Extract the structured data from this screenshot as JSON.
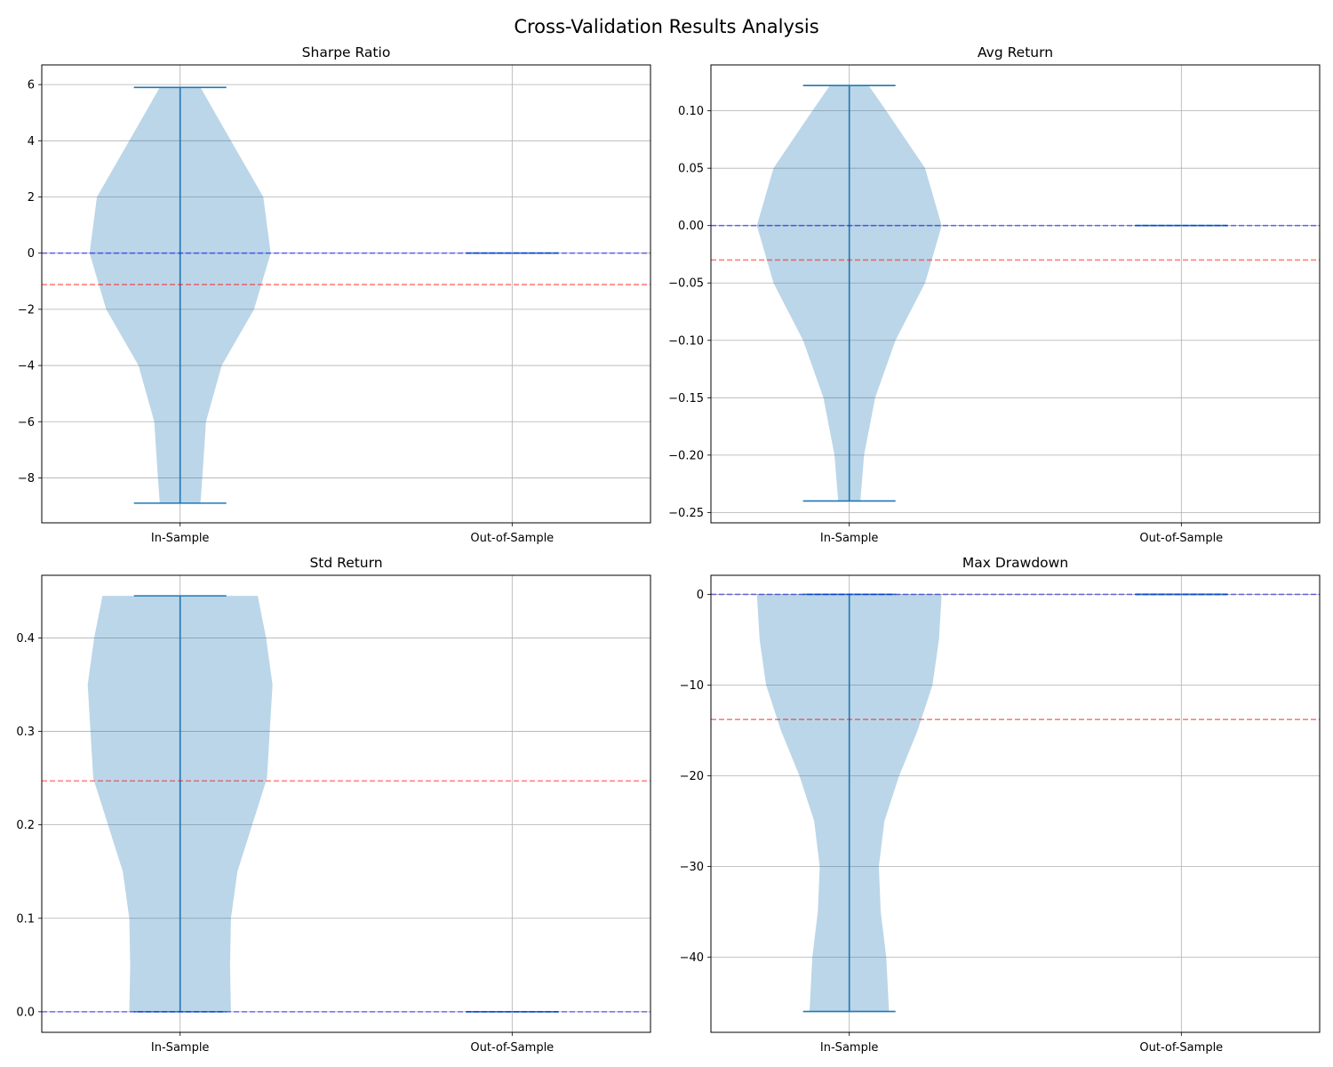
{
  "figure": {
    "title": "Cross-Validation Results Analysis"
  },
  "colors": {
    "violin_fill": "#1f77b4",
    "violin_opacity": 0.3,
    "line": "#1f77b4",
    "ref_blue": "#0000ff",
    "ref_red": "#ff0000",
    "grid": "#b0b0b0"
  },
  "chart_data": [
    {
      "type": "violin",
      "title": "Sharpe Ratio",
      "categories": [
        "In-Sample",
        "Out-of-Sample"
      ],
      "ylim": [
        -9.6,
        6.7
      ],
      "yticks": [
        -8,
        -6,
        -4,
        -2,
        0,
        2,
        4,
        6
      ],
      "ytick_labels": [
        "−8",
        "−6",
        "−4",
        "−2",
        "0",
        "2",
        "4",
        "6"
      ],
      "grid": true,
      "violins": [
        {
          "category": "In-Sample",
          "min": -8.9,
          "max": 5.9,
          "profile": [
            [
              -8.9,
              0.22
            ],
            [
              -8.0,
              0.24
            ],
            [
              -6.0,
              0.28
            ],
            [
              -4.0,
              0.45
            ],
            [
              -2.0,
              0.8
            ],
            [
              0.0,
              0.98
            ],
            [
              2.0,
              0.9
            ],
            [
              4.0,
              0.55
            ],
            [
              5.9,
              0.22
            ]
          ]
        },
        {
          "category": "Out-of-Sample",
          "min": 0.0,
          "max": 0.0,
          "profile": []
        }
      ],
      "ref_lines": [
        {
          "value": 0.0,
          "color": "blue"
        },
        {
          "value": -1.12,
          "color": "red"
        }
      ]
    },
    {
      "type": "violin",
      "title": "Avg Return",
      "categories": [
        "In-Sample",
        "Out-of-Sample"
      ],
      "ylim": [
        -0.259,
        0.14
      ],
      "yticks": [
        -0.25,
        -0.2,
        -0.15,
        -0.1,
        -0.05,
        0.0,
        0.05,
        0.1
      ],
      "ytick_labels": [
        "−0.25",
        "−0.20",
        "−0.15",
        "−0.10",
        "−0.05",
        "0.00",
        "0.05",
        "0.10"
      ],
      "grid": true,
      "violins": [
        {
          "category": "In-Sample",
          "min": -0.24,
          "max": 0.122,
          "profile": [
            [
              -0.24,
              0.12
            ],
            [
              -0.2,
              0.16
            ],
            [
              -0.15,
              0.28
            ],
            [
              -0.1,
              0.5
            ],
            [
              -0.05,
              0.82
            ],
            [
              0.0,
              1.0
            ],
            [
              0.05,
              0.82
            ],
            [
              0.1,
              0.4
            ],
            [
              0.122,
              0.21
            ]
          ]
        },
        {
          "category": "Out-of-Sample",
          "min": 0.0,
          "max": 0.0,
          "profile": []
        }
      ],
      "ref_lines": [
        {
          "value": 0.0,
          "color": "blue"
        },
        {
          "value": -0.03,
          "color": "red"
        }
      ]
    },
    {
      "type": "violin",
      "title": "Std Return",
      "categories": [
        "In-Sample",
        "Out-of-Sample"
      ],
      "ylim": [
        -0.022,
        0.467
      ],
      "yticks": [
        0.0,
        0.1,
        0.2,
        0.3,
        0.4
      ],
      "ytick_labels": [
        "0.0",
        "0.1",
        "0.2",
        "0.3",
        "0.4"
      ],
      "grid": true,
      "violins": [
        {
          "category": "In-Sample",
          "min": 0.0,
          "max": 0.445,
          "profile": [
            [
              0.0,
              0.55
            ],
            [
              0.05,
              0.54
            ],
            [
              0.1,
              0.55
            ],
            [
              0.15,
              0.62
            ],
            [
              0.2,
              0.78
            ],
            [
              0.25,
              0.94
            ],
            [
              0.3,
              0.97
            ],
            [
              0.35,
              1.0
            ],
            [
              0.4,
              0.93
            ],
            [
              0.445,
              0.84
            ]
          ]
        },
        {
          "category": "Out-of-Sample",
          "min": 0.0,
          "max": 0.0,
          "profile": []
        }
      ],
      "ref_lines": [
        {
          "value": 0.0,
          "color": "blue"
        },
        {
          "value": 0.247,
          "color": "red"
        }
      ]
    },
    {
      "type": "violin",
      "title": "Max Drawdown",
      "categories": [
        "In-Sample",
        "Out-of-Sample"
      ],
      "ylim": [
        -48.3,
        2.1
      ],
      "yticks": [
        -40,
        -30,
        -20,
        -10,
        0
      ],
      "ytick_labels": [
        "−40",
        "−30",
        "−20",
        "−10",
        "0"
      ],
      "grid": true,
      "violins": [
        {
          "category": "In-Sample",
          "min": -46.0,
          "max": 0.0,
          "profile": [
            [
              -46.0,
              0.43
            ],
            [
              -40.0,
              0.4
            ],
            [
              -35.0,
              0.34
            ],
            [
              -30.0,
              0.32
            ],
            [
              -25.0,
              0.38
            ],
            [
              -20.0,
              0.54
            ],
            [
              -15.0,
              0.74
            ],
            [
              -10.0,
              0.9
            ],
            [
              -5.0,
              0.97
            ],
            [
              0.0,
              1.0
            ]
          ]
        },
        {
          "category": "Out-of-Sample",
          "min": 0.0,
          "max": 0.0,
          "profile": []
        }
      ],
      "ref_lines": [
        {
          "value": 0.0,
          "color": "blue"
        },
        {
          "value": -13.8,
          "color": "red"
        }
      ]
    }
  ]
}
